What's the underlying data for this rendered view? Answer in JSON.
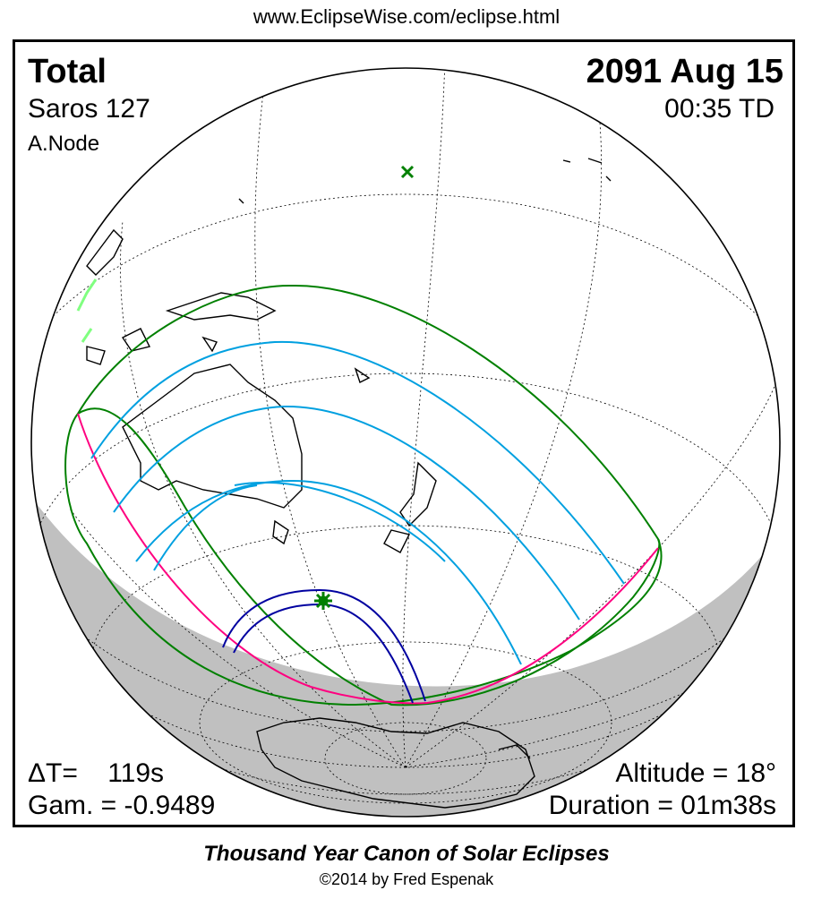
{
  "header": {
    "url": "www.EclipseWise.com/eclipse.html"
  },
  "eclipse": {
    "type": "Total",
    "saros": "Saros 127",
    "node": "A.Node",
    "date": "2091 Aug 15",
    "time": "00:35 TD",
    "delta_t": "ΔT=    119s",
    "gamma": "Gam. = -0.9489",
    "altitude": "Altitude = 18°",
    "duration": "Duration = 01m38s"
  },
  "colors": {
    "night_shade": "#c0c0c0",
    "coastline": "#000000",
    "graticule": "#000000",
    "penumbra_limit": "#008000",
    "sunrise_sunset": "#ff0080",
    "partial_magnitude": "#00a0e0",
    "central_path": "#0000a0",
    "subsolar_marker": "#008000",
    "ice": "#80ff80"
  },
  "icons": {
    "subsolar_point": "x-cross-icon",
    "greatest_eclipse": "star-burst-icon"
  },
  "footer": {
    "canon": "Thousand Year Canon of Solar Eclipses",
    "copyright": "©2014 by Fred Espenak"
  }
}
